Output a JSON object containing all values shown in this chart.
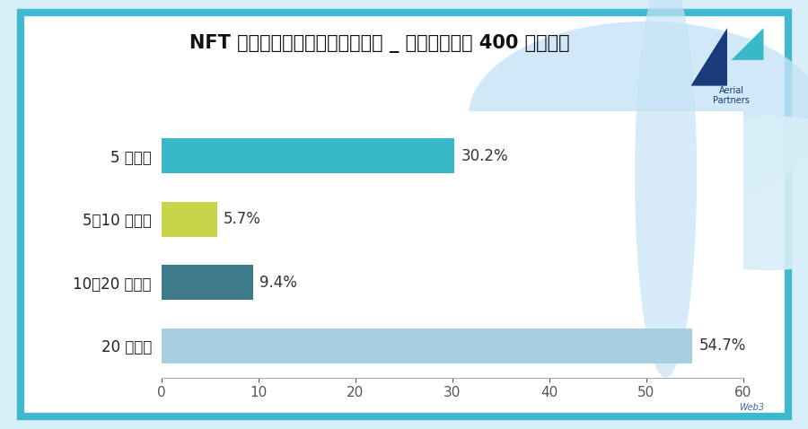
{
  "title": "NFT を所有・売買したことがある _ 所有数（年収 400 万未満）",
  "categories": [
    "5 個未満",
    "5〜10 個未満",
    "10〜20 個未満",
    "20 個以上"
  ],
  "values": [
    30.2,
    5.7,
    9.4,
    54.7
  ],
  "labels": [
    "30.2%",
    "5.7%",
    "9.4%",
    "54.7%"
  ],
  "bar_colors": [
    "#38b8c8",
    "#c8d44a",
    "#3d7a8a",
    "#a8cfe0"
  ],
  "xlim": [
    0,
    60
  ],
  "xticks": [
    0,
    10,
    20,
    30,
    40,
    50,
    60
  ],
  "bg_outer": "#d8eef8",
  "bg_inner": "#ffffff",
  "border_color": "#40b8d0",
  "title_fontsize": 15,
  "label_fontsize": 12,
  "tick_fontsize": 11,
  "ytick_fontsize": 12,
  "deco_circle_color": "#c5e3f5",
  "deco_circle2_color": "#d8eef8"
}
